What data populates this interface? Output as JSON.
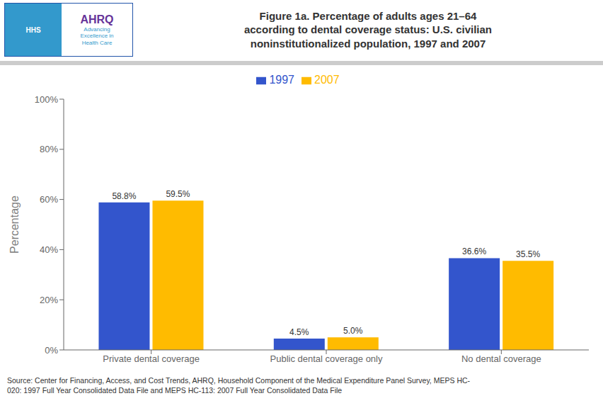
{
  "chart_data": {
    "type": "bar",
    "title": "Figure 1a. Percentage of adults ages 21–64\naccording to dental coverage status: U.S. civilian\nnoninstitutionalized population, 1997 and 2007",
    "ylabel": "Percentage",
    "categories": [
      "Private dental coverage",
      "Public dental coverage only",
      "No dental coverage"
    ],
    "series": [
      {
        "name": "1997",
        "color": "#3355CC",
        "values": [
          58.8,
          4.5,
          36.6
        ],
        "value_labels": [
          "58.8%",
          "4.5%",
          "36.6%"
        ]
      },
      {
        "name": "2007",
        "color": "#FFBB00",
        "values": [
          59.5,
          5.0,
          35.5
        ],
        "value_labels": [
          "59.5%",
          "5.0%",
          "35.5%"
        ]
      }
    ],
    "ylim": [
      0,
      100
    ],
    "yticks": [
      {
        "value": 0,
        "label": "0%"
      },
      {
        "value": 20,
        "label": "20%"
      },
      {
        "value": 40,
        "label": "40%"
      },
      {
        "value": 60,
        "label": "60%"
      },
      {
        "value": 80,
        "label": "80%"
      },
      {
        "value": 100,
        "label": "100%"
      }
    ],
    "data_labels": true,
    "grid": false,
    "annotations": [
      "HHS",
      "AHRQ",
      "Advancing\nExcellence in\nHealth Care"
    ],
    "source": "Source: Center for Financing, Access, and Cost Trends, AHRQ, Household Component of the Medical Expenditure Panel Survey, MEPS HC-\n020: 1997 Full Year Consolidated Data File and MEPS HC-113: 2007 Full Year Consolidated Data File"
  }
}
